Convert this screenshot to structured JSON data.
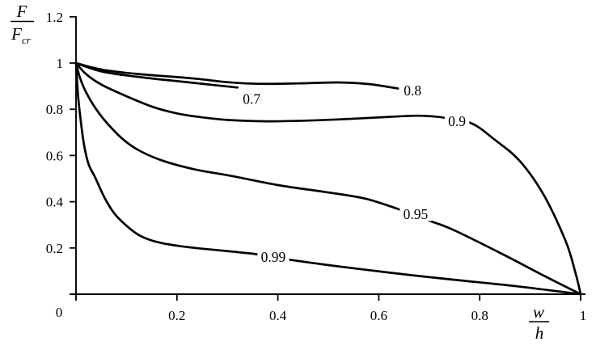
{
  "chart_data": {
    "type": "line",
    "title": "",
    "ylabel": {
      "numerator": "F",
      "denominator_base": "F",
      "denominator_sub": "cr"
    },
    "xlabel": {
      "numerator": "w",
      "denominator": "h"
    },
    "xlim": [
      0,
      1
    ],
    "ylim": [
      0,
      1.2
    ],
    "grid": false,
    "legend": "none (curves labeled inline)",
    "axis_color": "#000000",
    "line_color": "#000000",
    "background": "#ffffff",
    "origin_label": "0",
    "x_ticks": [
      {
        "value": 0.2,
        "label": "0.2"
      },
      {
        "value": 0.4,
        "label": "0.4"
      },
      {
        "value": 0.6,
        "label": "0.6"
      },
      {
        "value": 0.8,
        "label": "0.8"
      },
      {
        "value": 1.0,
        "label": "1"
      }
    ],
    "y_ticks": [
      {
        "value": 0.2,
        "label": "0.2"
      },
      {
        "value": 0.4,
        "label": "0.4"
      },
      {
        "value": 0.6,
        "label": "0.6"
      },
      {
        "value": 0.8,
        "label": "0.8"
      },
      {
        "value": 1.0,
        "label": "1"
      },
      {
        "value": 1.2,
        "label": "1.2"
      }
    ],
    "series": [
      {
        "name": "0.7",
        "label": "0.7",
        "label_at": {
          "x": 0.348,
          "y": 0.845
        },
        "points": [
          [
            0,
            1
          ],
          [
            0.05,
            0.964
          ],
          [
            0.12,
            0.941
          ],
          [
            0.19,
            0.924
          ],
          [
            0.243,
            0.912
          ],
          [
            0.29,
            0.901
          ],
          [
            0.32,
            0.894
          ]
        ]
      },
      {
        "name": "0.8",
        "label": "0.8",
        "label_at": {
          "x": 0.667,
          "y": 0.881
        },
        "points": [
          [
            0,
            1
          ],
          [
            0.05,
            0.972
          ],
          [
            0.12,
            0.953
          ],
          [
            0.19,
            0.941
          ],
          [
            0.243,
            0.931
          ],
          [
            0.3,
            0.917
          ],
          [
            0.36,
            0.91
          ],
          [
            0.44,
            0.912
          ],
          [
            0.52,
            0.916
          ],
          [
            0.58,
            0.909
          ],
          [
            0.638,
            0.89
          ]
        ]
      },
      {
        "name": "0.9",
        "label": "0.9",
        "label_at": {
          "x": 0.755,
          "y": 0.748
        },
        "points": [
          [
            0,
            1
          ],
          [
            0.02,
            0.952
          ],
          [
            0.05,
            0.907
          ],
          [
            0.091,
            0.865
          ],
          [
            0.15,
            0.812
          ],
          [
            0.2,
            0.782
          ],
          [
            0.243,
            0.767
          ],
          [
            0.3,
            0.754
          ],
          [
            0.38,
            0.748
          ],
          [
            0.46,
            0.751
          ],
          [
            0.54,
            0.758
          ],
          [
            0.62,
            0.767
          ],
          [
            0.68,
            0.772
          ],
          [
            0.732,
            0.763
          ],
          [
            0.784,
            0.739
          ],
          [
            0.827,
            0.673
          ],
          [
            0.88,
            0.575
          ],
          [
            0.928,
            0.425
          ],
          [
            0.971,
            0.226
          ],
          [
            0.99,
            0.09
          ],
          [
            1,
            0
          ]
        ]
      },
      {
        "name": "0.95",
        "label": "0.95",
        "label_at": {
          "x": 0.673,
          "y": 0.346
        },
        "points": [
          [
            0,
            1
          ],
          [
            0.008,
            0.935
          ],
          [
            0.02,
            0.873
          ],
          [
            0.04,
            0.8
          ],
          [
            0.06,
            0.744
          ],
          [
            0.09,
            0.676
          ],
          [
            0.123,
            0.624
          ],
          [
            0.171,
            0.578
          ],
          [
            0.235,
            0.54
          ],
          [
            0.307,
            0.512
          ],
          [
            0.4,
            0.472
          ],
          [
            0.491,
            0.443
          ],
          [
            0.57,
            0.415
          ],
          [
            0.635,
            0.371
          ],
          [
            0.7,
            0.318
          ],
          [
            0.747,
            0.279
          ],
          [
            0.85,
            0.168
          ],
          [
            0.93,
            0.077
          ],
          [
            1,
            0
          ]
        ]
      },
      {
        "name": "0.99",
        "label": "0.99",
        "label_at": {
          "x": 0.391,
          "y": 0.161
        },
        "points": [
          [
            0,
            1
          ],
          [
            0.004,
            0.86
          ],
          [
            0.01,
            0.74
          ],
          [
            0.016,
            0.645
          ],
          [
            0.025,
            0.562
          ],
          [
            0.038,
            0.505
          ],
          [
            0.056,
            0.42
          ],
          [
            0.075,
            0.352
          ],
          [
            0.094,
            0.308
          ],
          [
            0.12,
            0.262
          ],
          [
            0.145,
            0.236
          ],
          [
            0.175,
            0.219
          ],
          [
            0.21,
            0.207
          ],
          [
            0.25,
            0.197
          ],
          [
            0.307,
            0.185
          ],
          [
            0.35,
            0.175
          ],
          [
            0.39,
            0.162
          ],
          [
            0.427,
            0.148
          ],
          [
            0.5,
            0.126
          ],
          [
            0.555,
            0.111
          ],
          [
            0.65,
            0.086
          ],
          [
            0.747,
            0.063
          ],
          [
            0.875,
            0.034
          ],
          [
            1,
            0
          ]
        ]
      }
    ]
  }
}
